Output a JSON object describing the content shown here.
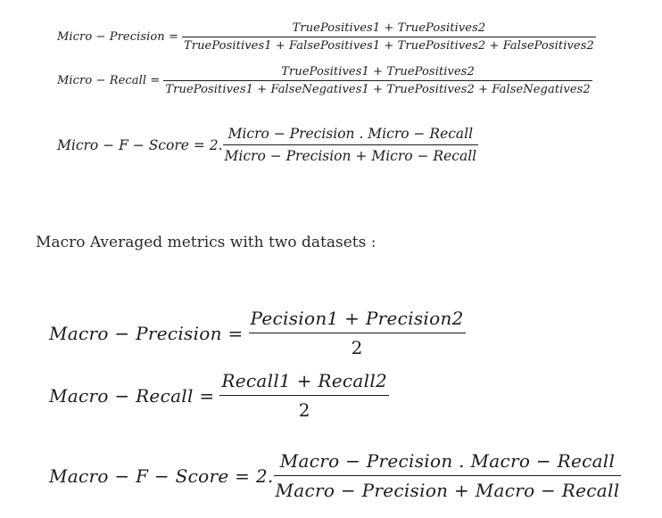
{
  "micro": {
    "precision": {
      "lhs": "Micro − Precision =",
      "num": "TruePositives1 + TruePositives2",
      "den": "TruePositives1 + FalsePositives1 + TruePositives2 + FalsePositives2"
    },
    "recall": {
      "lhs": "Micro − Recall =",
      "num": "TruePositives1 + TruePositives2",
      "den": "TruePositives1 + FalseNegatives1 + TruePositives2 + FalseNegatives2"
    },
    "fscore": {
      "lhs": "Micro − F − Score = 2.",
      "num": "Micro − Precision . Micro − Recall",
      "den": "Micro − Precision + Micro − Recall"
    }
  },
  "heading": "Macro Averaged metrics with two datasets :",
  "macro": {
    "precision": {
      "lhs": "Macro − Precision =",
      "num": "Pecision1 + Precision2",
      "den": "2"
    },
    "recall": {
      "lhs": "Macro − Recall =",
      "num": "Recall1 + Recall2",
      "den": "2"
    },
    "fscore": {
      "lhs": "Macro − F − Score = 2.",
      "num": "Macro − Precision . Macro − Recall",
      "den": "Macro − Precision + Macro − Recall"
    }
  }
}
